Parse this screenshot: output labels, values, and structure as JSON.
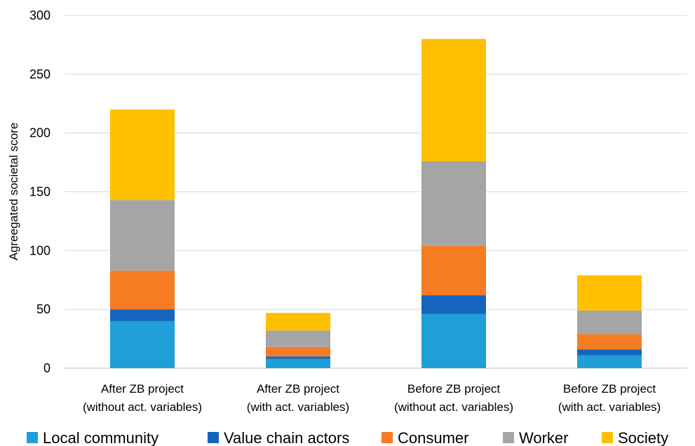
{
  "chart_data": {
    "type": "bar",
    "stacked": true,
    "ylabel": "Agreegated societal score",
    "xlabel": "",
    "ylim": [
      0,
      300
    ],
    "yticks": [
      0,
      50,
      100,
      150,
      200,
      250,
      300
    ],
    "grid": true,
    "legend_position": "bottom",
    "categories": [
      [
        "After ZB project",
        "(without act. variables)"
      ],
      [
        "After ZB project",
        "(with act. variables)"
      ],
      [
        "Before ZB project",
        "(without act. variables)"
      ],
      [
        "Before ZB project",
        "(with act. variables)"
      ]
    ],
    "series": [
      {
        "name": "Local community",
        "color": "#1F9FD8",
        "values": [
          40,
          8,
          46,
          11
        ]
      },
      {
        "name": "Value chain actors",
        "color": "#1565C0",
        "values": [
          10,
          2,
          16,
          5
        ]
      },
      {
        "name": "Consumer",
        "color": "#F57C23",
        "values": [
          33,
          8,
          42,
          13
        ]
      },
      {
        "name": "Worker",
        "color": "#A5A5A5",
        "values": [
          60,
          14,
          72,
          20
        ]
      },
      {
        "name": "Society",
        "color": "#FFC000",
        "values": [
          77,
          15,
          104,
          30
        ]
      }
    ]
  }
}
